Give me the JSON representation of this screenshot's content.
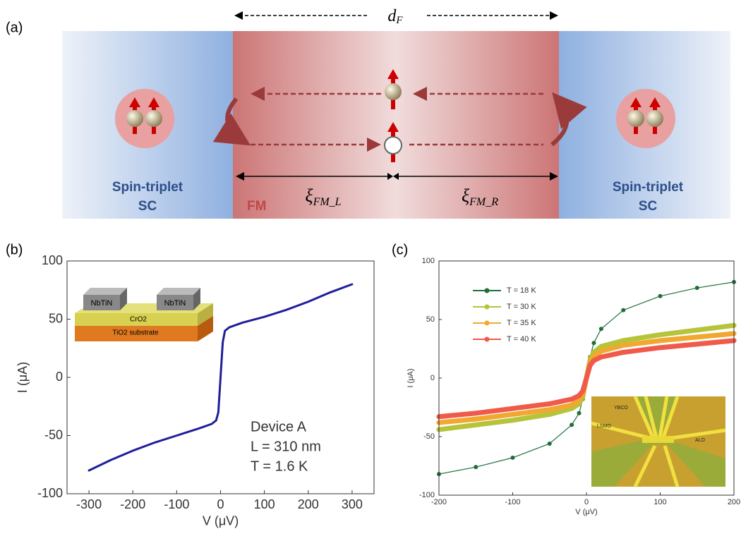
{
  "diagram": {
    "panel_label": "(a)",
    "width_label": {
      "symbol": "d",
      "sub": "F"
    },
    "left_label": [
      "Spin-triplet",
      "SC"
    ],
    "right_label": [
      "Spin-triplet",
      "SC"
    ],
    "middle_label": "FM",
    "xi_left": {
      "symbol": "ξ",
      "sub": "FM_L"
    },
    "xi_right": {
      "symbol": "ξ",
      "sub": "FM_R"
    }
  },
  "chart_data": [
    {
      "type": "line",
      "panel_label": "(b)",
      "xlabel": "V (μV)",
      "ylabel": "I (μA)",
      "x": [
        -300,
        -250,
        -200,
        -150,
        -100,
        -50,
        -20,
        -10,
        -5,
        0,
        5,
        10,
        20,
        50,
        100,
        150,
        200,
        250,
        300
      ],
      "series": [
        {
          "color": "#1f1f9a",
          "values": [
            -80,
            -71,
            -63,
            -56,
            -50,
            -44,
            -40,
            -37,
            -30,
            0,
            30,
            40,
            43,
            47,
            52,
            58,
            65,
            73,
            80
          ]
        }
      ],
      "xlim": [
        -350,
        350
      ],
      "ylim": [
        -100,
        100
      ],
      "xticks": [
        -300,
        -200,
        -100,
        0,
        100,
        200,
        300
      ],
      "yticks": [
        -100,
        -50,
        0,
        50,
        100
      ],
      "annotations": [
        "Device A",
        "L = 310 nm",
        "T = 1.6 K"
      ],
      "inset_labels": [
        "NbTiN",
        "NbTiN",
        "CrO2",
        "TiO2 substrate"
      ]
    },
    {
      "type": "line",
      "panel_label": "(c)",
      "xlabel": "V (μV)",
      "ylabel": "I (μA)",
      "x": [
        -200,
        -150,
        -100,
        -50,
        -20,
        -10,
        -5,
        0,
        5,
        10,
        20,
        50,
        100,
        150,
        200
      ],
      "series": [
        {
          "name": "T = 18 K",
          "color": "#1f6e3a",
          "values": [
            -82,
            -76,
            -68,
            -56,
            -40,
            -30,
            -18,
            0,
            18,
            30,
            42,
            58,
            70,
            77,
            82
          ]
        },
        {
          "name": "T = 30 K",
          "color": "#b5c43a",
          "values": [
            -44,
            -40,
            -36,
            -31,
            -26,
            -22,
            -16,
            0,
            16,
            22,
            27,
            32,
            37,
            41,
            45
          ]
        },
        {
          "name": "T = 35 K",
          "color": "#f0a830",
          "values": [
            -38,
            -35,
            -31,
            -27,
            -23,
            -19,
            -14,
            0,
            14,
            19,
            23,
            28,
            32,
            35,
            38
          ]
        },
        {
          "name": "T = 40 K",
          "color": "#f05a4a",
          "values": [
            -33,
            -30,
            -26,
            -22,
            -18,
            -15,
            -11,
            0,
            11,
            15,
            18,
            22,
            26,
            29,
            32
          ]
        }
      ],
      "xlim": [
        -200,
        200
      ],
      "ylim": [
        -100,
        100
      ],
      "xticks": [
        -200,
        -100,
        0,
        100,
        200
      ],
      "yticks": [
        -100,
        -50,
        0,
        50,
        100
      ],
      "legend": "upper left",
      "inset_labels": [
        "YBCO",
        "LSMO",
        "ALO"
      ]
    }
  ]
}
